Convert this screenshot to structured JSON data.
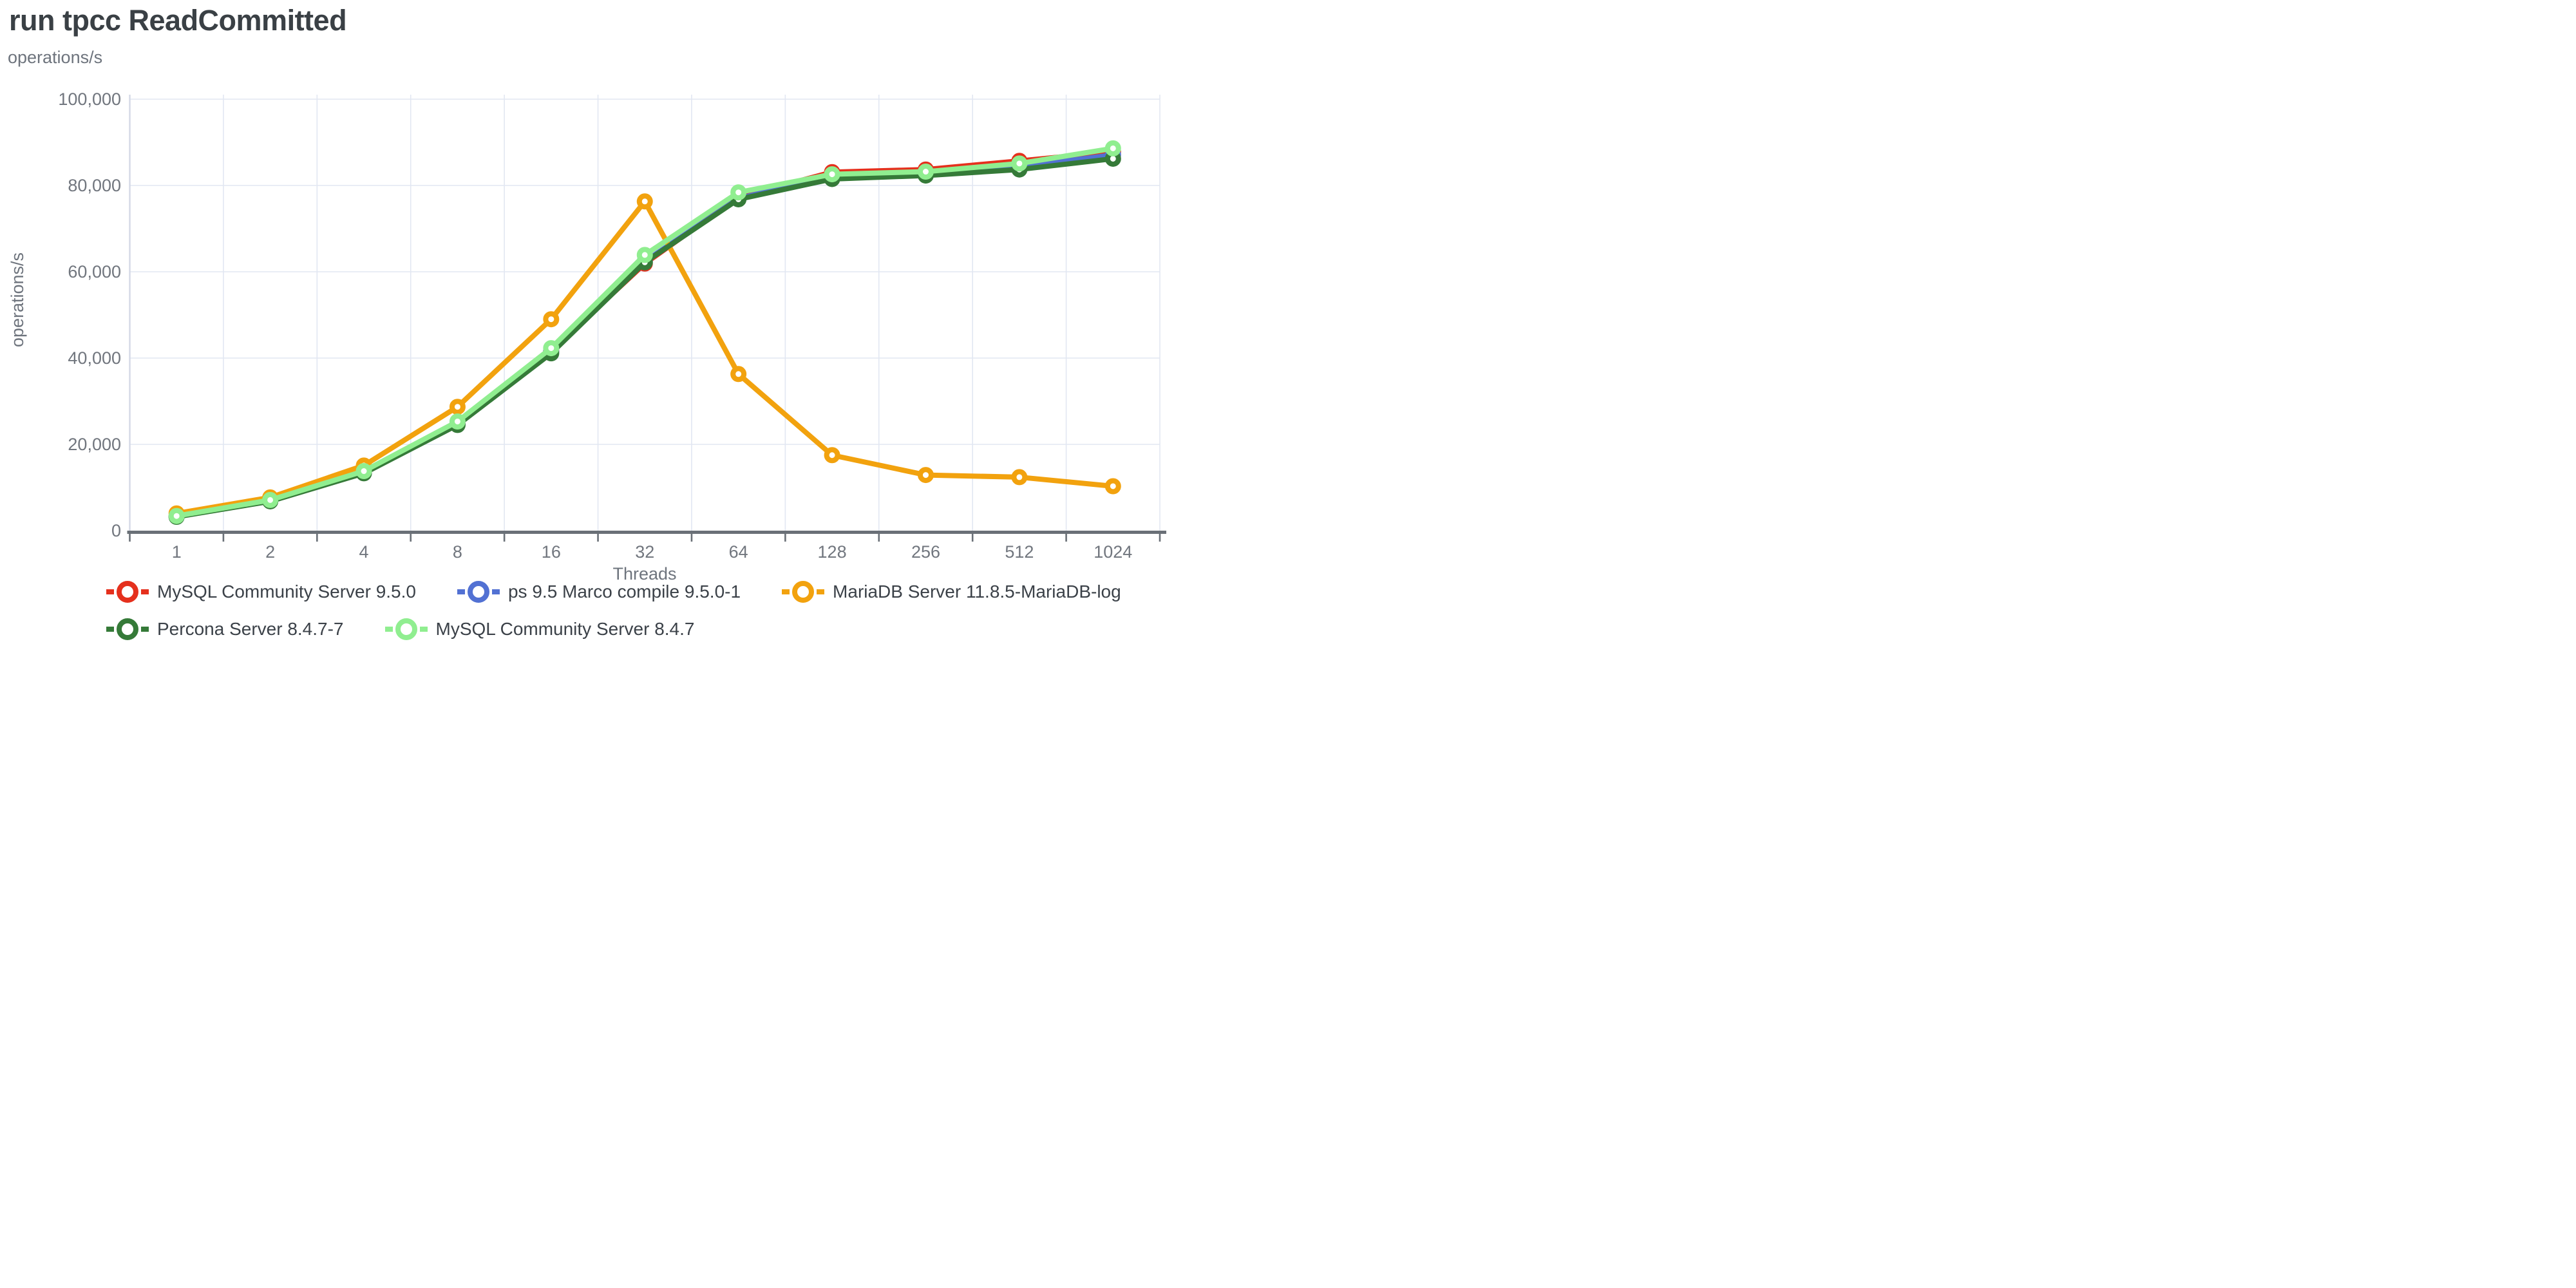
{
  "title": "run tpcc ReadCommitted",
  "unit_label_top": "operations/s",
  "colors": {
    "title_text": "#3a4045",
    "axis_text": "#71767e",
    "grid_line": "#e2e7f2",
    "y_axis_line": "#d4d9e6",
    "x_axis_line": "#6a7077",
    "background": "#ffffff"
  },
  "chart_data": {
    "type": "line",
    "title": "run tpcc ReadCommitted",
    "xlabel": "Threads",
    "ylabel": "operations/s",
    "x_scale": "categorical-log2",
    "categories": [
      "1",
      "2",
      "4",
      "8",
      "16",
      "32",
      "64",
      "128",
      "256",
      "512",
      "1024"
    ],
    "ylim": [
      0,
      100000
    ],
    "y_ticks": [
      0,
      20000,
      40000,
      60000,
      80000,
      100000
    ],
    "y_tick_labels": [
      "0",
      "20,000",
      "40,000",
      "60,000",
      "80,000",
      "100,000"
    ],
    "grid": true,
    "legend_position": "bottom",
    "legend_rows": [
      [
        0,
        1,
        2
      ],
      [
        3,
        4
      ]
    ],
    "series": [
      {
        "name": "MySQL Community Server 9.5.0",
        "color": "#e5301d",
        "values": [
          3300,
          7000,
          13500,
          24900,
          41700,
          61900,
          77300,
          83100,
          83700,
          85700,
          87800
        ]
      },
      {
        "name": "ps 9.5 Marco compile 9.5.0-1",
        "color": "#5271d3",
        "values": [
          3250,
          6900,
          13400,
          24700,
          41500,
          62400,
          77000,
          82200,
          82900,
          84300,
          87100
        ]
      },
      {
        "name": "MariaDB Server 11.8.5-MariaDB-log",
        "color": "#f2a20e",
        "values": [
          4000,
          7700,
          15100,
          28700,
          49000,
          76300,
          36300,
          17500,
          12900,
          12400,
          10300
        ]
      },
      {
        "name": "Percona Server 8.4.7-7",
        "color": "#357a38",
        "values": [
          3200,
          6800,
          13300,
          24500,
          41100,
          62200,
          76800,
          81500,
          82300,
          83700,
          86200
        ]
      },
      {
        "name": "MySQL Community Server 8.4.7",
        "color": "#90ee90",
        "values": [
          3400,
          7100,
          13800,
          25300,
          42300,
          63900,
          78400,
          82600,
          83200,
          85100,
          88600
        ]
      }
    ]
  }
}
